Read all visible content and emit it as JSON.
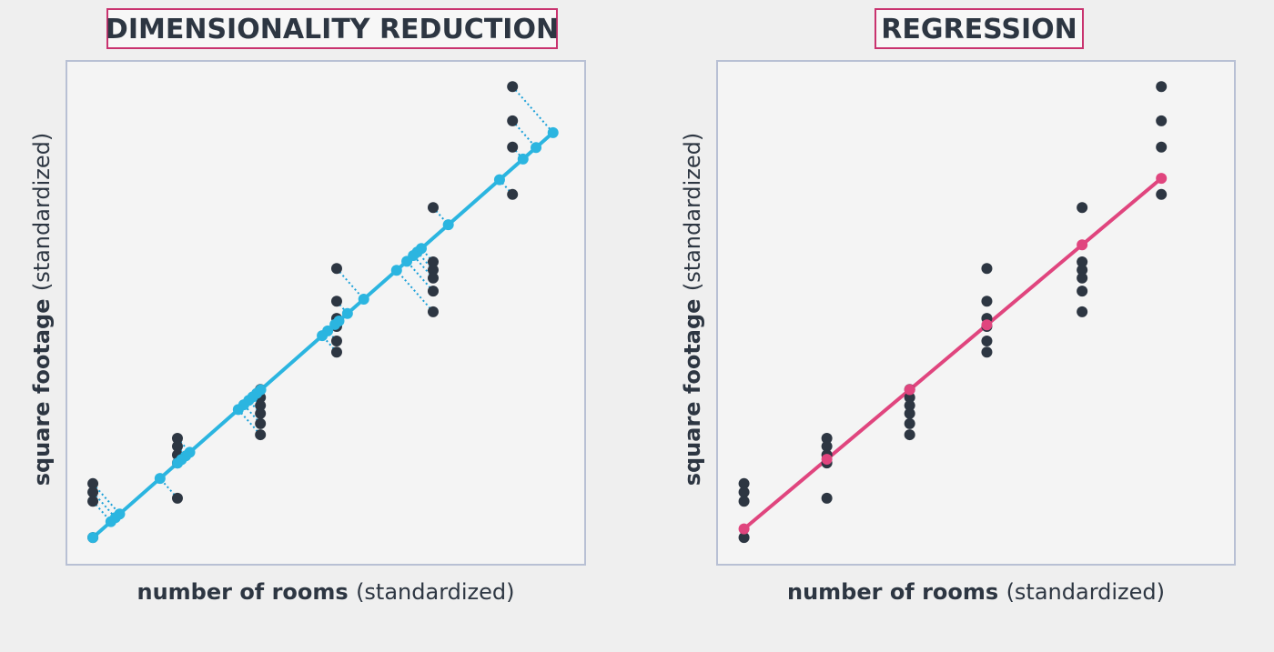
{
  "chart_data": [
    {
      "type": "scatter",
      "title": "DIMENSIONALITY REDUCTION",
      "x_label": {
        "main": "number of rooms",
        "note": "(standardized)"
      },
      "y_label": {
        "main": "square footage",
        "note": "(standardized)"
      },
      "x": [
        5.1,
        5.1,
        5.1,
        5.1,
        21.4,
        21.4,
        21.4,
        21.4,
        21.4,
        37.4,
        37.4,
        37.4,
        37.4,
        37.4,
        37.4,
        52.1,
        52.1,
        52.1,
        52.1,
        52.1,
        52.1,
        70.7,
        70.7,
        70.7,
        70.7,
        70.7,
        70.7,
        86.0,
        86.0,
        86.0,
        86.0
      ],
      "y": [
        16.1,
        14.4,
        12.6,
        5.4,
        25.1,
        23.5,
        21.8,
        20.2,
        13.2,
        34.8,
        33.2,
        31.6,
        30.0,
        28.0,
        25.8,
        58.8,
        52.3,
        48.9,
        47.3,
        44.4,
        42.2,
        70.9,
        60.1,
        58.5,
        56.9,
        54.3,
        50.2,
        94.9,
        88.1,
        82.9,
        73.5
      ],
      "xlim": [
        0,
        100
      ],
      "ylim": [
        0,
        100
      ],
      "line": {
        "x": [
          5.1,
          94.4
        ],
        "y": [
          5.4,
          86.3
        ]
      },
      "projection": "orthogonal",
      "point_color": "#2d3642",
      "line_color": "#2bb5e0"
    },
    {
      "type": "scatter",
      "title": "REGRESSION",
      "x_label": {
        "main": "number of rooms",
        "note": "(standardized)"
      },
      "y_label": {
        "main": "square footage",
        "note": "(standardized)"
      },
      "x": [
        5.2,
        5.2,
        5.2,
        5.2,
        21.2,
        21.2,
        21.2,
        21.2,
        21.2,
        37.2,
        37.2,
        37.2,
        37.2,
        37.2,
        37.2,
        52.1,
        52.1,
        52.1,
        52.1,
        52.1,
        52.1,
        70.5,
        70.5,
        70.5,
        70.5,
        70.5,
        70.5,
        85.8,
        85.8,
        85.8,
        85.8
      ],
      "y": [
        16.1,
        14.4,
        12.6,
        5.4,
        25.1,
        23.5,
        21.8,
        20.2,
        13.2,
        34.8,
        33.2,
        31.6,
        30.0,
        28.0,
        25.8,
        58.8,
        52.3,
        48.9,
        47.3,
        44.4,
        42.2,
        70.9,
        60.1,
        58.5,
        56.9,
        54.3,
        50.2,
        94.9,
        88.1,
        82.9,
        73.5
      ],
      "xlim": [
        0,
        100
      ],
      "ylim": [
        0,
        100
      ],
      "line": {
        "x": [
          5.3,
          85.8
        ],
        "y": [
          7.2,
          76.7
        ]
      },
      "projection": "fitted",
      "point_color": "#2d3642",
      "line_color": "#e0457e"
    }
  ]
}
